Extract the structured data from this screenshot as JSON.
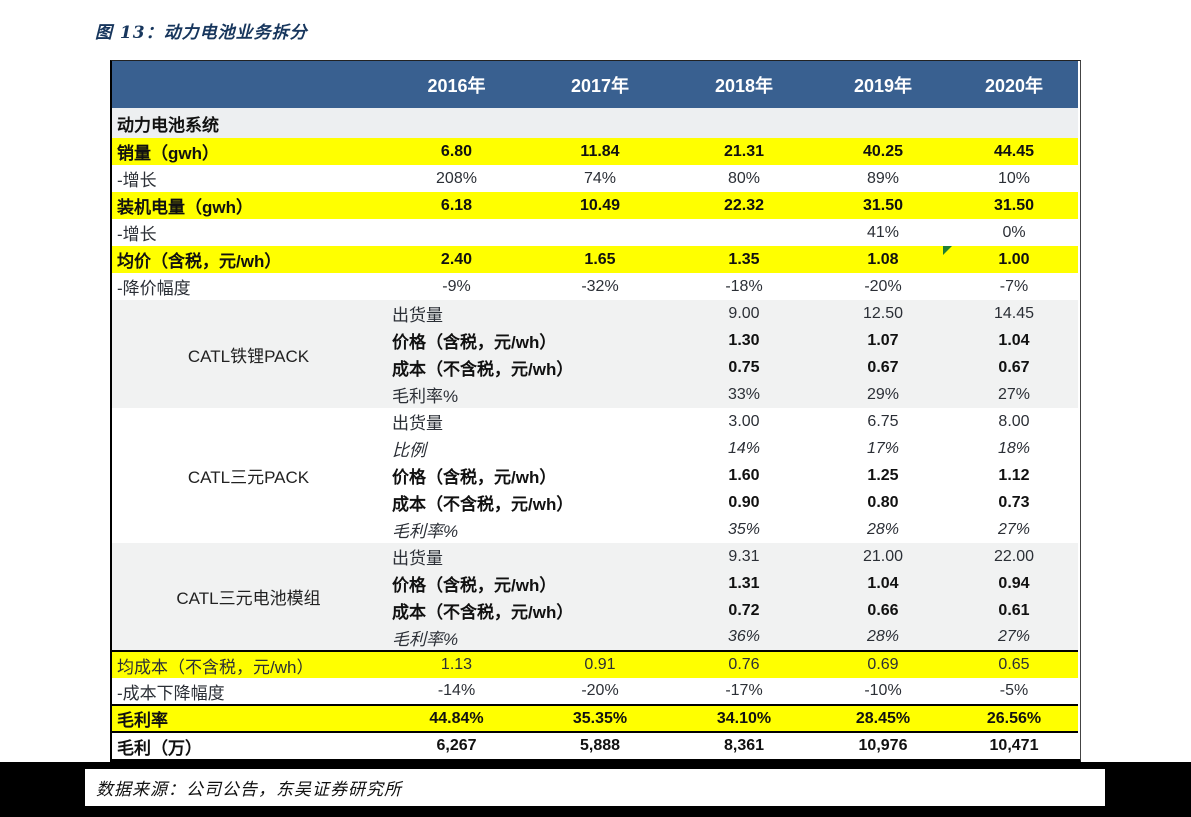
{
  "page": {
    "title": "图 13：动力电池业务拆分",
    "source_note": "数据来源：公司公告，东吴证券研究所"
  },
  "colors": {
    "header_bg": "#396090",
    "highlight_yellow": "#FFFF00",
    "section_gray": "#F1F2F2",
    "title_navy": "#17365D",
    "marker_green": "#1E7E34"
  },
  "icons": {
    "green_corner_marker": "excel-flag-triangle"
  },
  "table": {
    "columns": [
      "2016年",
      "2017年",
      "2018年",
      "2019年",
      "2020年"
    ],
    "section_title": "动力电池系统",
    "top_rows": [
      {
        "label": "销量（gwh）",
        "highlight": true,
        "emphasis": "bold",
        "values": [
          "6.80",
          "11.84",
          "21.31",
          "40.25",
          "44.45"
        ]
      },
      {
        "label": "-增长",
        "highlight": false,
        "emphasis": "regular",
        "values": [
          "208%",
          "74%",
          "80%",
          "89%",
          "10%"
        ]
      },
      {
        "label": "装机电量（gwh）",
        "highlight": true,
        "emphasis": "bold",
        "values": [
          "6.18",
          "10.49",
          "22.32",
          "31.50",
          "31.50"
        ]
      },
      {
        "label": "-增长",
        "highlight": false,
        "emphasis": "regular",
        "values": [
          "",
          "",
          "",
          "41%",
          "0%"
        ]
      },
      {
        "label": "均价（含税，元/wh）",
        "highlight": true,
        "emphasis": "bold",
        "marker": "green-corner-on-2020",
        "values": [
          "2.40",
          "1.65",
          "1.35",
          "1.08",
          "1.00"
        ]
      },
      {
        "label": "-降价幅度",
        "highlight": false,
        "emphasis": "regular",
        "values": [
          "-9%",
          "-32%",
          "-18%",
          "-20%",
          "-7%"
        ]
      }
    ],
    "groups": [
      {
        "name": "CATL铁锂PACK",
        "shaded": true,
        "rows": [
          {
            "label": "出货量",
            "emphasis": "regular",
            "values": [
              "9.00",
              "12.50",
              "14.45"
            ]
          },
          {
            "label": "价格（含税，元/wh）",
            "emphasis": "bold",
            "values": [
              "1.30",
              "1.07",
              "1.04"
            ]
          },
          {
            "label": "成本（不含税，元/wh）",
            "emphasis": "bold",
            "values": [
              "0.75",
              "0.67",
              "0.67"
            ]
          },
          {
            "label": "毛利率%",
            "emphasis": "regular",
            "values": [
              "33%",
              "29%",
              "27%"
            ]
          }
        ]
      },
      {
        "name": "CATL三元PACK",
        "shaded": false,
        "rows": [
          {
            "label": "出货量",
            "emphasis": "regular",
            "values": [
              "3.00",
              "6.75",
              "8.00"
            ]
          },
          {
            "label": "比例",
            "emphasis": "italic",
            "values": [
              "14%",
              "17%",
              "18%"
            ]
          },
          {
            "label": "价格（含税，元/wh）",
            "emphasis": "bold",
            "values": [
              "1.60",
              "1.25",
              "1.12"
            ]
          },
          {
            "label": "成本（不含税，元/wh）",
            "emphasis": "bold",
            "values": [
              "0.90",
              "0.80",
              "0.73"
            ]
          },
          {
            "label": "毛利率%",
            "emphasis": "italic",
            "values": [
              "35%",
              "28%",
              "27%"
            ]
          }
        ]
      },
      {
        "name": "CATL三元电池模组",
        "shaded": true,
        "rows": [
          {
            "label": "出货量",
            "emphasis": "regular",
            "values": [
              "9.31",
              "21.00",
              "22.00"
            ]
          },
          {
            "label": "价格（含税，元/wh）",
            "emphasis": "bold",
            "values": [
              "1.31",
              "1.04",
              "0.94"
            ]
          },
          {
            "label": "成本（不含税，元/wh）",
            "emphasis": "bold",
            "values": [
              "0.72",
              "0.66",
              "0.61"
            ]
          },
          {
            "label": "毛利率%",
            "emphasis": "italic",
            "values": [
              "36%",
              "28%",
              "27%"
            ]
          }
        ]
      }
    ],
    "bottom_rows": [
      {
        "label": "均成本（不含税，元/wh）",
        "highlight": true,
        "emphasis": "regular",
        "top_border": true,
        "values": [
          "1.13",
          "0.91",
          "0.76",
          "0.69",
          "0.65"
        ]
      },
      {
        "label": "-成本下降幅度",
        "highlight": false,
        "emphasis": "regular",
        "top_border": false,
        "values": [
          "-14%",
          "-20%",
          "-17%",
          "-10%",
          "-5%"
        ]
      },
      {
        "label": "毛利率",
        "highlight": true,
        "emphasis": "bold",
        "top_border": true,
        "values": [
          "44.84%",
          "35.35%",
          "34.10%",
          "28.45%",
          "26.56%"
        ]
      },
      {
        "label": "毛利（万）",
        "highlight": false,
        "emphasis": "bold",
        "top_border": true,
        "values": [
          "6,267",
          "5,888",
          "8,361",
          "10,976",
          "10,471"
        ]
      }
    ]
  }
}
